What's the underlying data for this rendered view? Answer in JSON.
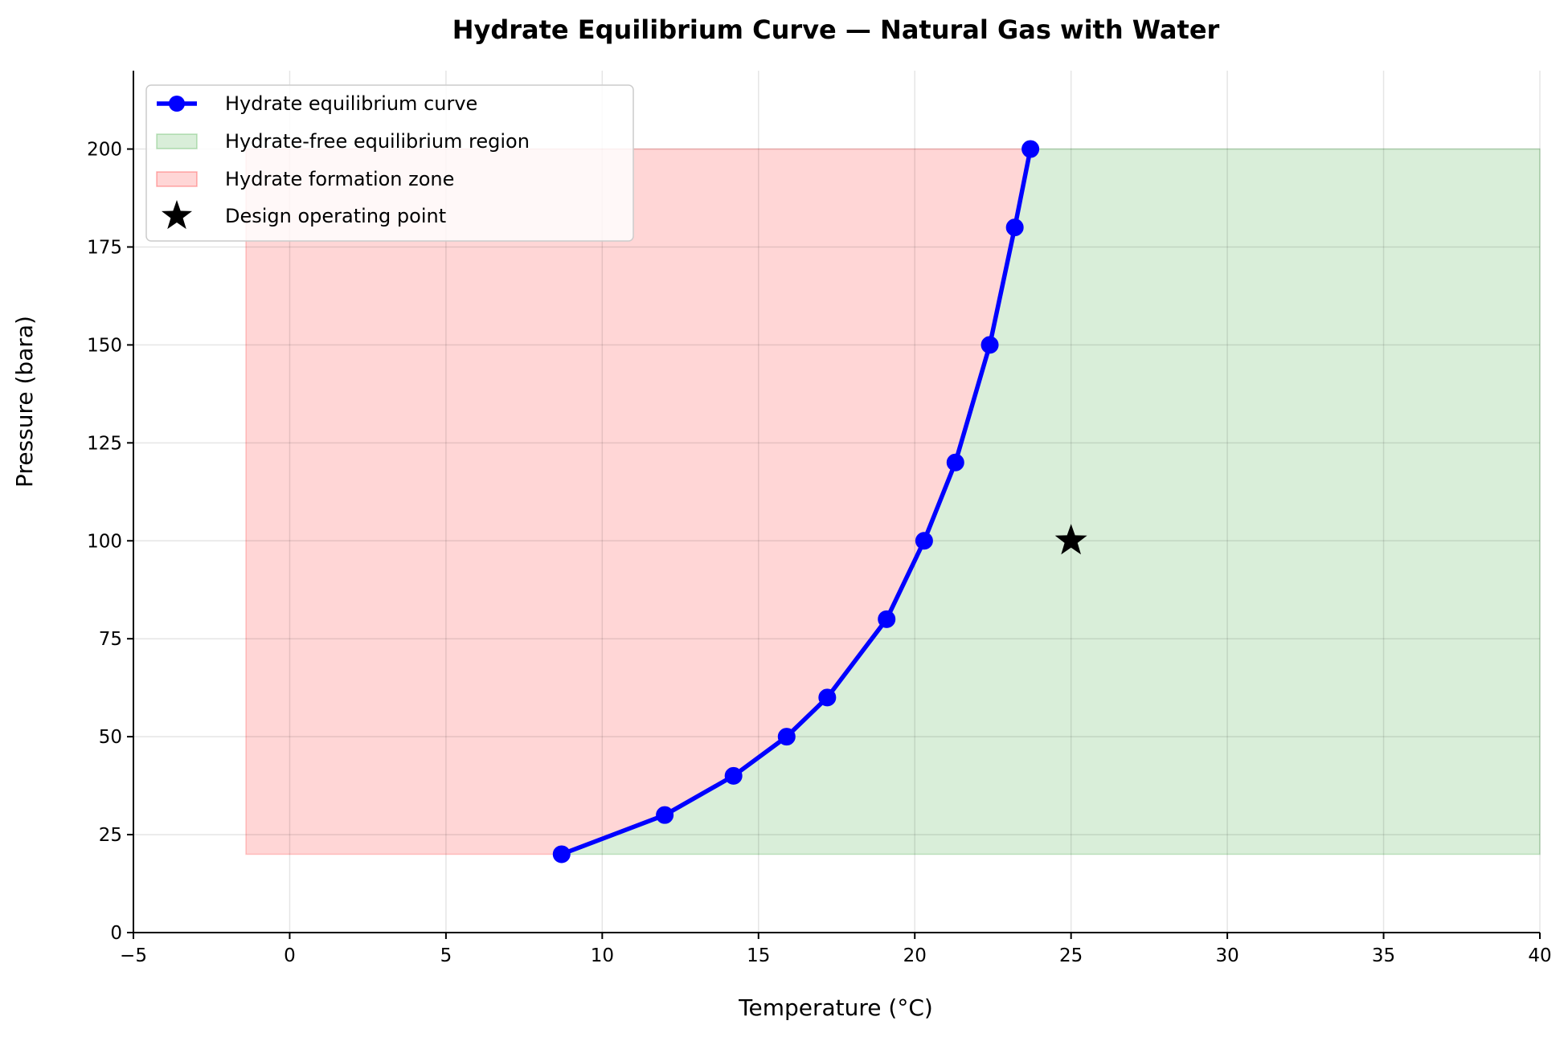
{
  "chart_data": {
    "type": "line",
    "title": "Hydrate Equilibrium Curve — Natural Gas with Water",
    "xlabel": "Temperature (°C)",
    "ylabel": "Pressure (bara)",
    "xlim": [
      -5,
      40
    ],
    "ylim": [
      0,
      220
    ],
    "x_ticks": [
      -5,
      0,
      5,
      10,
      15,
      20,
      25,
      30,
      35,
      40
    ],
    "x_tick_labels": [
      "−5",
      "0",
      "5",
      "10",
      "15",
      "20",
      "25",
      "30",
      "35",
      "40"
    ],
    "y_ticks": [
      0,
      25,
      50,
      75,
      100,
      125,
      150,
      175,
      200
    ],
    "y_tick_labels": [
      "0",
      "25",
      "50",
      "75",
      "100",
      "125",
      "150",
      "175",
      "200"
    ],
    "grid": true,
    "legend_position": "top-left",
    "series": [
      {
        "name": "Hydrate equilibrium curve",
        "color": "#0000ff",
        "marker": "circle",
        "x": [
          8.7,
          12.0,
          14.2,
          15.9,
          17.2,
          19.1,
          20.3,
          21.3,
          22.4,
          23.2,
          23.7
        ],
        "y": [
          20,
          30,
          40,
          50,
          60,
          80,
          100,
          120,
          150,
          180,
          200
        ]
      }
    ],
    "regions": [
      {
        "name": "Hydrate-free equilibrium region",
        "color": "#2ca02c",
        "opacity": 0.18,
        "x_right": 40,
        "y_bottom": 20,
        "y_top": 200
      },
      {
        "name": "Hydrate formation zone",
        "color": "#ff0000",
        "opacity": 0.16,
        "x_left": -1.4,
        "y_bottom": 20,
        "y_top": 200
      }
    ],
    "points": [
      {
        "name": "Design operating point",
        "x": 25,
        "y": 100,
        "marker": "star",
        "color": "#000000"
      }
    ],
    "legend": [
      {
        "label": "Hydrate equilibrium curve",
        "kind": "line-marker",
        "color": "#0000ff"
      },
      {
        "label": "Hydrate-free equilibrium region",
        "kind": "patch",
        "color": "#2ca02c"
      },
      {
        "label": "Hydrate formation zone",
        "kind": "patch",
        "color": "#ff0000"
      },
      {
        "label": "Design operating point",
        "kind": "star",
        "color": "#000000"
      }
    ]
  }
}
